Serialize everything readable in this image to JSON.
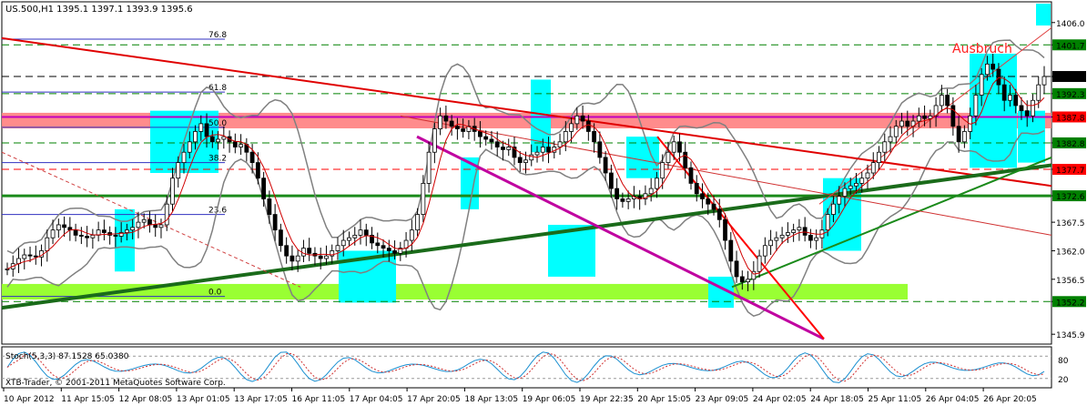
{
  "header": {
    "symbol_line": "US.500,H1  1395.1 1397.1 1393.9 1395.6"
  },
  "chart_data": {
    "type": "candlestick",
    "symbol": "US.500",
    "timeframe": "H1",
    "ohlc": {
      "open": 1395.1,
      "high": 1397.1,
      "low": 1393.9,
      "close": 1395.6
    },
    "ylim": [
      1344,
      1410
    ],
    "y_ticks": [
      1406.0,
      1401.7,
      1395.6,
      1392.3,
      1387.8,
      1382.8,
      1377.7,
      1372.6,
      1367.5,
      1362.0,
      1356.5,
      1352.2,
      1345.9
    ],
    "y_tick_labels": [
      "1406.0",
      "1401.7",
      "1395.6",
      "1392.3",
      "1387.8",
      "1382.8",
      "1377.7",
      "1372.6",
      "1367.5",
      "1362.0",
      "1356.5",
      "1352.2",
      "1345.9"
    ],
    "highlighted_levels": [
      {
        "value": 1401.7,
        "label": "1401.7",
        "color": "#008000"
      },
      {
        "value": 1395.6,
        "label": "1395.6",
        "color": "#000000"
      },
      {
        "value": 1392.3,
        "label": "1392.3",
        "color": "#008000"
      },
      {
        "value": 1387.8,
        "label": "1387.8",
        "color": "#ff0000"
      },
      {
        "value": 1382.8,
        "label": "1382.8",
        "color": "#008000"
      },
      {
        "value": 1377.7,
        "label": "1377.7",
        "color": "#ff0000"
      },
      {
        "value": 1372.6,
        "label": "1372.6",
        "color": "#008000"
      },
      {
        "value": 1352.2,
        "label": "1352.2",
        "color": "#008000"
      }
    ],
    "x_tick_labels": [
      "10 Apr 2012",
      "11 Apr 15:05",
      "12 Apr 08:05",
      "13 Apr 01:05",
      "13 Apr 17:05",
      "16 Apr 11:05",
      "17 Apr 04:05",
      "17 Apr 20:05",
      "18 Apr 13:05",
      "19 Apr 06:05",
      "19 Apr 22:35",
      "20 Apr 15:05",
      "23 Apr 09:05",
      "24 Apr 02:05",
      "24 Apr 18:05",
      "25 Apr 11:05",
      "26 Apr 04:05",
      "26 Apr 20:05"
    ],
    "fibonacci": [
      {
        "label": "76.8",
        "value": 1402.8
      },
      {
        "label": "61.8",
        "value": 1392.6
      },
      {
        "label": "50.0",
        "value": 1385.8
      },
      {
        "label": "38.2",
        "value": 1379.0
      },
      {
        "label": "23.6",
        "value": 1369.0
      },
      {
        "label": "0.0",
        "value": 1353.2
      }
    ],
    "annotation": "Ausbruch",
    "close_series": [
      1358.5,
      1359.5,
      1360.5,
      1361.2,
      1361,
      1360.8,
      1362,
      1364.5,
      1366,
      1367,
      1366.5,
      1366,
      1365,
      1364.8,
      1364.5,
      1365,
      1366,
      1365.5,
      1365,
      1364.8,
      1365.5,
      1366,
      1366.5,
      1367.5,
      1368,
      1367,
      1366.5,
      1367,
      1371,
      1376,
      1379,
      1381,
      1383,
      1385,
      1386.5,
      1384,
      1383,
      1383.5,
      1384,
      1383,
      1382,
      1382.5,
      1381,
      1379,
      1376,
      1372,
      1369,
      1366,
      1363,
      1361,
      1360,
      1361,
      1362.5,
      1361.5,
      1361,
      1360.5,
      1361,
      1362,
      1363,
      1364,
      1364.5,
      1365,
      1366,
      1365,
      1363.5,
      1363,
      1362.5,
      1362,
      1361.5,
      1362.5,
      1364,
      1366,
      1369,
      1375,
      1381,
      1385.5,
      1388,
      1387,
      1386,
      1385.5,
      1385,
      1386,
      1385,
      1384,
      1383.5,
      1383,
      1382,
      1381.5,
      1382,
      1380,
      1379,
      1379.5,
      1380.5,
      1381,
      1382,
      1381,
      1382,
      1383,
      1385,
      1386.5,
      1388,
      1387,
      1385,
      1383,
      1380,
      1377,
      1374,
      1372,
      1371.5,
      1372,
      1372.5,
      1372,
      1373,
      1374,
      1376,
      1379,
      1381,
      1383,
      1381,
      1378,
      1375,
      1373,
      1372,
      1371,
      1370,
      1368,
      1364,
      1360,
      1357,
      1356,
      1356.5,
      1358,
      1361,
      1363,
      1364,
      1364.5,
      1365,
      1365.5,
      1366,
      1366.5,
      1365,
      1364,
      1364.5,
      1366,
      1369,
      1371,
      1372.5,
      1374,
      1374.5,
      1375,
      1376,
      1377,
      1379,
      1381,
      1383,
      1384,
      1386,
      1387,
      1386,
      1387,
      1388,
      1387.5,
      1388,
      1390,
      1392,
      1390,
      1386,
      1383,
      1385,
      1388,
      1392,
      1396,
      1398,
      1397,
      1394,
      1391,
      1392,
      1390,
      1389,
      1388,
      1391,
      1394,
      1395.6
    ]
  },
  "stochastic": {
    "label": "Stoch(5,3,3) 87.1528 65.0380",
    "ylabel_top": "80",
    "ylabel_bottom": "20"
  },
  "footer": {
    "copyright": "XTB-Trader, © 2001-2011 MetaQuotes Software Corp."
  },
  "colors": {
    "bull_band": "#00ffff",
    "resistance_band": "#ff8080",
    "support_band": "#99ff33",
    "trend_red": "#e00000",
    "trend_green": "#1a6b1a",
    "trend_magenta": "#c000a0",
    "bollinger": "#808080",
    "ma": "#d00000"
  }
}
